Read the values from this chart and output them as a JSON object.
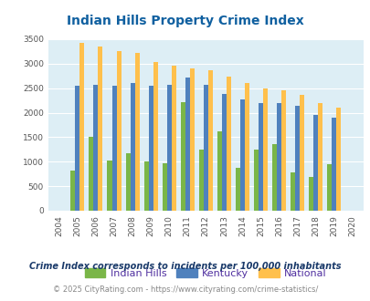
{
  "title": "Indian Hills Property Crime Index",
  "years": [
    2004,
    2005,
    2006,
    2007,
    2008,
    2009,
    2010,
    2011,
    2012,
    2013,
    2014,
    2015,
    2016,
    2017,
    2018,
    2019,
    2020
  ],
  "indian_hills": [
    0,
    820,
    1500,
    1020,
    1180,
    1010,
    960,
    2210,
    1250,
    1620,
    870,
    1250,
    1360,
    780,
    680,
    940,
    0
  ],
  "kentucky": [
    0,
    2540,
    2560,
    2540,
    2600,
    2540,
    2560,
    2710,
    2560,
    2380,
    2270,
    2190,
    2190,
    2140,
    1960,
    1900,
    0
  ],
  "national": [
    0,
    3420,
    3340,
    3260,
    3210,
    3040,
    2950,
    2910,
    2860,
    2730,
    2600,
    2490,
    2460,
    2360,
    2200,
    2110,
    0
  ],
  "color_indian_hills": "#7ab648",
  "color_kentucky": "#4f81bd",
  "color_national": "#ffc04c",
  "bg_color": "#ddeef5",
  "ylim": [
    0,
    3500
  ],
  "yticks": [
    0,
    500,
    1000,
    1500,
    2000,
    2500,
    3000,
    3500
  ],
  "legend_labels": [
    "Indian Hills",
    "Kentucky",
    "National"
  ],
  "footnote1": "Crime Index corresponds to incidents per 100,000 inhabitants",
  "footnote2": "© 2025 CityRating.com - https://www.cityrating.com/crime-statistics/",
  "title_color": "#1060a0",
  "footnote1_color": "#1a3a6a",
  "footnote2_color": "#888888",
  "legend_text_color": "#5030a0"
}
